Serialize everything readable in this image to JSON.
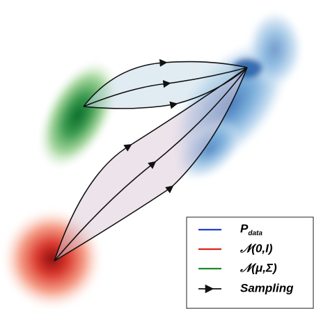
{
  "legend": [
    {
      "label": "P",
      "subscript": "data"
    },
    {
      "label": "𝒩(0,I)"
    },
    {
      "label": "𝒩(μ,Σ)"
    },
    {
      "label": "Sampling"
    }
  ]
}
